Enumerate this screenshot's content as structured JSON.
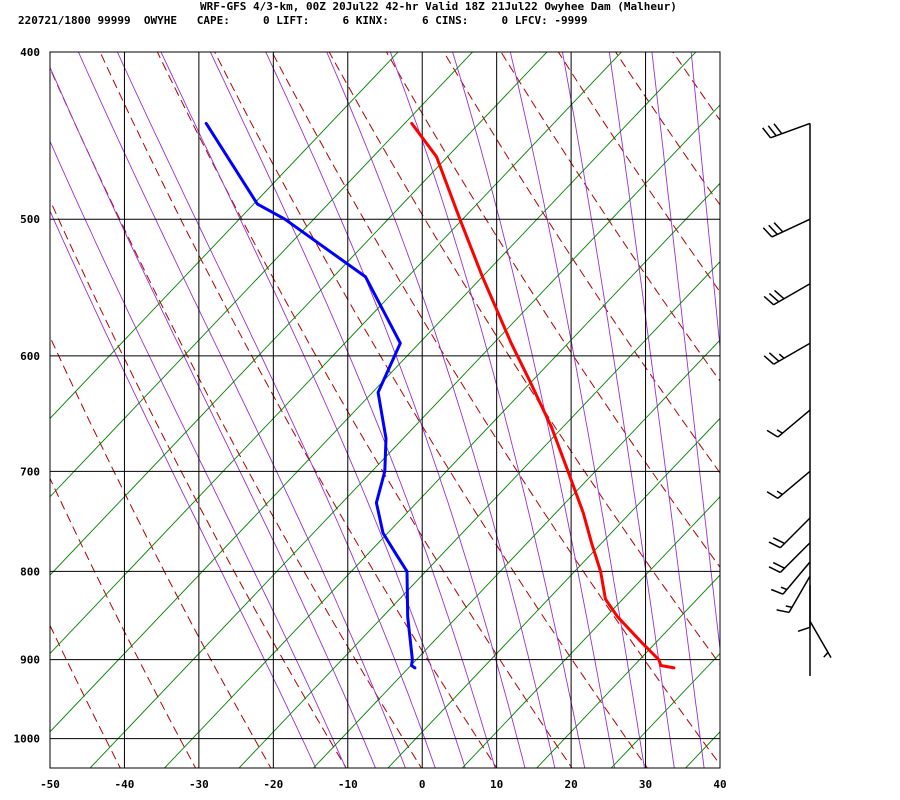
{
  "header": {
    "line1": "WRF-GFS 4/3-km, 00Z 20Jul22 42-hr Valid 18Z 21Jul22 Owyhee Dam (Malheur)",
    "line2": "220721/1800 99999  OWYHE   CAPE:     0 LIFT:     6 KINX:     6 CINS:     0 LFCV: -9999"
  },
  "colors": {
    "temperature": "#ff0000",
    "dewpoint": "#0000ff",
    "dry_adiabat": "#b00000",
    "moist_adiabat": "#9933cc",
    "mixing_ratio": "#008000",
    "grid": "#000000",
    "wind_barb": "#000000"
  },
  "chart_data": {
    "type": "skew-t",
    "x_ticks": [
      -50,
      -40,
      -30,
      -20,
      -10,
      0,
      10,
      20,
      30,
      40
    ],
    "y_ticks": [
      400,
      500,
      600,
      700,
      800,
      900,
      1000
    ],
    "xlim": [
      -50,
      40
    ],
    "ylim": [
      1040,
      400
    ],
    "y_scale": "log",
    "grid": true,
    "series": [
      {
        "key": "temperature",
        "pressure": [
          910,
          907,
          900,
          880,
          850,
          830,
          800,
          770,
          740,
          700,
          660,
          620,
          590,
          540,
          500,
          460,
          440
        ],
        "values": [
          31.8,
          30.0,
          29.6,
          27.0,
          23.2,
          21.2,
          20.0,
          18.2,
          16.5,
          13.6,
          10.5,
          6.6,
          3.4,
          -1.8,
          -6.0,
          -10.4,
          -14.4
        ]
      },
      {
        "key": "dewpoint",
        "pressure": [
          910,
          907,
          900,
          850,
          800,
          780,
          760,
          730,
          700,
          670,
          630,
          590,
          540,
          500,
          490,
          440
        ],
        "values": [
          -3.0,
          -3.5,
          -3.5,
          -5.0,
          -6.0,
          -8.0,
          -10.0,
          -11.5,
          -11.0,
          -11.5,
          -13.5,
          -11.5,
          -17.5,
          -29.5,
          -33.5,
          -42.0
        ]
      }
    ],
    "wind_pressure": [
      440,
      500,
      545,
      590,
      645,
      700,
      745,
      770,
      790,
      805,
      815,
      855
    ],
    "wind_speed_kt": [
      30,
      30,
      30,
      25,
      15,
      15,
      20,
      20,
      15,
      15,
      10,
      5
    ],
    "wind_direction_deg": [
      250,
      245,
      240,
      240,
      230,
      230,
      225,
      225,
      220,
      210,
      180,
      150
    ]
  }
}
